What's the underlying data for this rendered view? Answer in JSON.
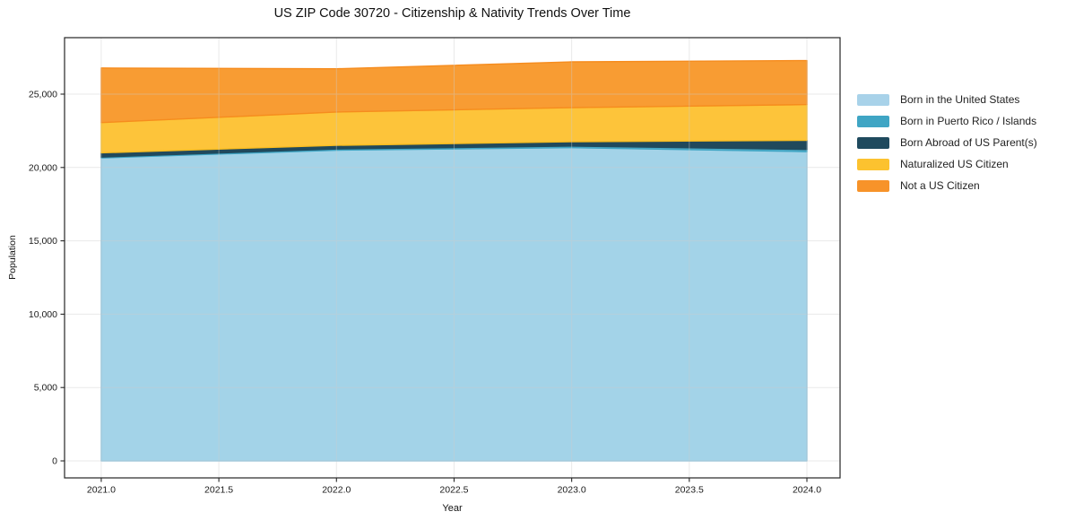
{
  "chart_data": {
    "type": "area",
    "stacked": true,
    "title": "US ZIP Code 30720 - Citizenship & Nativity Trends Over Time",
    "xlabel": "Year",
    "ylabel": "Population",
    "x": [
      2021,
      2022,
      2023,
      2024
    ],
    "series": [
      {
        "name": "Born in the United States",
        "values": [
          20650,
          21180,
          21350,
          21080
        ],
        "fill": "#A3D3E8",
        "line": "#90C6E0",
        "swatch": "#A8D2E9"
      },
      {
        "name": "Born in Puerto Rico / Islands",
        "values": [
          60,
          80,
          110,
          150
        ],
        "fill": "#4FABC6",
        "line": "#3FA5C4",
        "swatch": "#3FA5C4"
      },
      {
        "name": "Born Abroad of US Parent(s)",
        "values": [
          290,
          250,
          300,
          620
        ],
        "fill": "#21495C",
        "line": "#1F4A5E",
        "swatch": "#1F4A5E"
      },
      {
        "name": "Naturalized US Citizen",
        "values": [
          2060,
          2270,
          2320,
          2440
        ],
        "fill": "#FDC43A",
        "line": "#FBBD20",
        "swatch": "#FCC22F"
      },
      {
        "name": "Not a US Citizen",
        "values": [
          3720,
          2950,
          3120,
          3000
        ],
        "fill": "#F89C33",
        "line": "#F68C1E",
        "swatch": "#F79329"
      }
    ],
    "xtick_values": [
      2021.0,
      2021.5,
      2022.0,
      2022.5,
      2023.0,
      2023.5,
      2024.0
    ],
    "xtick_labels": [
      "2021.0",
      "2021.5",
      "2022.0",
      "2022.5",
      "2023.0",
      "2023.5",
      "2024.0"
    ],
    "ytick_values": [
      0,
      5000,
      10000,
      15000,
      20000,
      25000
    ],
    "ytick_labels": [
      "0",
      "5,000",
      "10,000",
      "15,000",
      "20,000",
      "25,000"
    ],
    "xlim": [
      2020.844,
      2024.141
    ],
    "ylim": [
      -1160,
      28850
    ],
    "grid": true,
    "legend_position": "right",
    "axis_color": "#262626",
    "grid_color": "#cccccc",
    "tick_label_color": "#1a1a1a"
  }
}
